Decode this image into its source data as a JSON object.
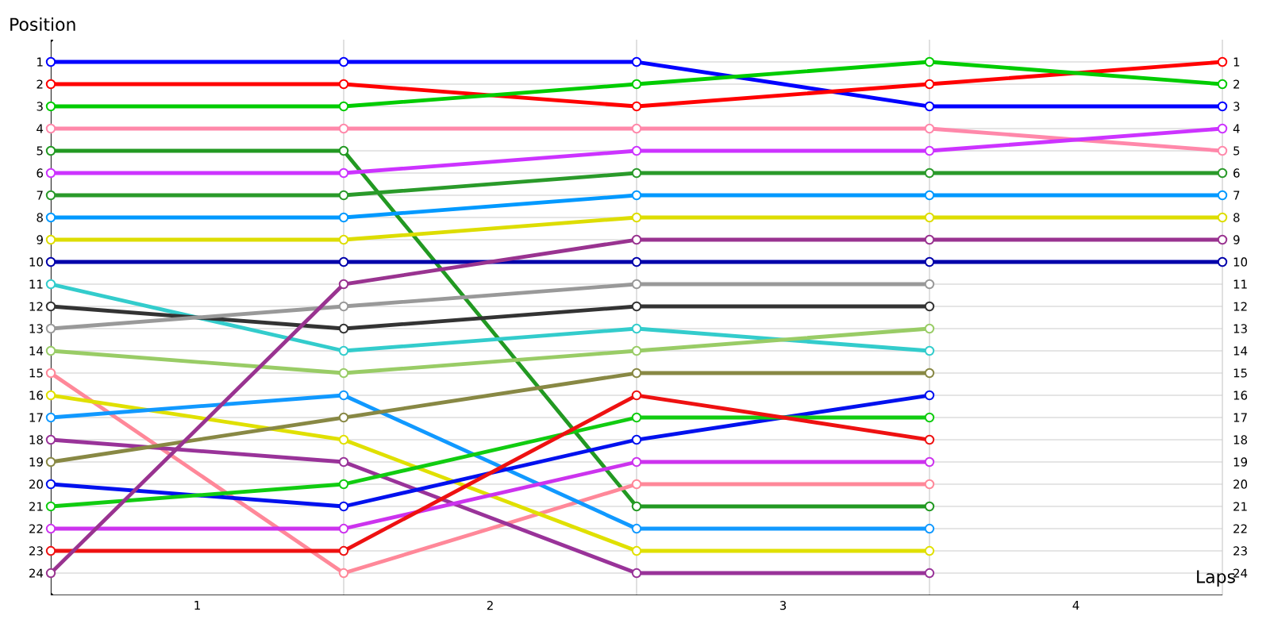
{
  "chart_data": {
    "type": "line",
    "xlabel": "Laps",
    "ylabel": "Position",
    "x": [
      0,
      1,
      2,
      3,
      4
    ],
    "xlim": [
      0,
      4
    ],
    "xticks": [
      {
        "value": 0,
        "label": null
      },
      {
        "value": 0.5,
        "label": "1"
      },
      {
        "value": 1,
        "label": null
      },
      {
        "value": 1.5,
        "label": "2"
      },
      {
        "value": 2,
        "label": null
      },
      {
        "value": 2.5,
        "label": "3"
      },
      {
        "value": 3,
        "label": null
      },
      {
        "value": 3.5,
        "label": "4"
      },
      {
        "value": 4,
        "label": null
      }
    ],
    "ylim": [
      25,
      0
    ],
    "yticks": [
      1,
      2,
      3,
      4,
      5,
      6,
      7,
      8,
      9,
      10,
      11,
      12,
      13,
      14,
      15,
      16,
      17,
      18,
      19,
      20,
      21,
      22,
      23,
      24
    ],
    "y2lim": [
      25,
      0
    ],
    "y2ticks": [
      1,
      2,
      3,
      4,
      5,
      6,
      7,
      8,
      9,
      10,
      11,
      12,
      13,
      14,
      15,
      16,
      17,
      18,
      19,
      20,
      21,
      22,
      23,
      24
    ],
    "grid": true,
    "marker": "circle",
    "line_style": "solid",
    "series": [
      {
        "color": "#0000ff",
        "values": [
          1,
          1,
          1,
          3,
          3
        ]
      },
      {
        "color": "#ff0000",
        "values": [
          2,
          2,
          3,
          2,
          1
        ]
      },
      {
        "color": "#00cc00",
        "values": [
          3,
          3,
          2,
          1,
          2
        ]
      },
      {
        "color": "#ff88aa",
        "values": [
          4,
          4,
          4,
          4,
          5
        ]
      },
      {
        "color": "#229922",
        "values": [
          5,
          5,
          21,
          21,
          null
        ]
      },
      {
        "color": "#cc33ff",
        "values": [
          6,
          6,
          5,
          5,
          4
        ]
      },
      {
        "color": "#2a9a2a",
        "values": [
          7,
          7,
          6,
          6,
          6
        ]
      },
      {
        "color": "#0099ff",
        "values": [
          8,
          8,
          7,
          7,
          7
        ]
      },
      {
        "color": "#dddd00",
        "values": [
          9,
          9,
          8,
          8,
          8
        ]
      },
      {
        "color": "#0000aa",
        "values": [
          10,
          10,
          10,
          10,
          10
        ]
      },
      {
        "color": "#33cccc",
        "values": [
          11,
          14,
          13,
          14,
          null
        ]
      },
      {
        "color": "#333333",
        "values": [
          12,
          13,
          12,
          12,
          null
        ]
      },
      {
        "color": "#999999",
        "values": [
          13,
          12,
          11,
          11,
          null
        ]
      },
      {
        "color": "#99cc66",
        "values": [
          14,
          15,
          14,
          13,
          null
        ]
      },
      {
        "color": "#ff8899",
        "values": [
          15,
          24,
          20,
          20,
          null
        ]
      },
      {
        "color": "#e0e000",
        "values": [
          16,
          18,
          23,
          23,
          null
        ]
      },
      {
        "color": "#1199ff",
        "values": [
          17,
          16,
          22,
          22,
          null
        ]
      },
      {
        "color": "#993399",
        "values": [
          18,
          19,
          24,
          24,
          null
        ]
      },
      {
        "color": "#888844",
        "values": [
          19,
          17,
          15,
          15,
          null
        ]
      },
      {
        "color": "#0011ee",
        "values": [
          20,
          21,
          18,
          16,
          null
        ]
      },
      {
        "color": "#11cc11",
        "values": [
          21,
          20,
          17,
          17,
          null
        ]
      },
      {
        "color": "#cc33ee",
        "values": [
          22,
          22,
          19,
          19,
          null
        ]
      },
      {
        "color": "#ee1111",
        "values": [
          23,
          23,
          16,
          18,
          null
        ]
      },
      {
        "color": "#993390",
        "values": [
          24,
          11,
          9,
          9,
          9
        ]
      }
    ]
  }
}
